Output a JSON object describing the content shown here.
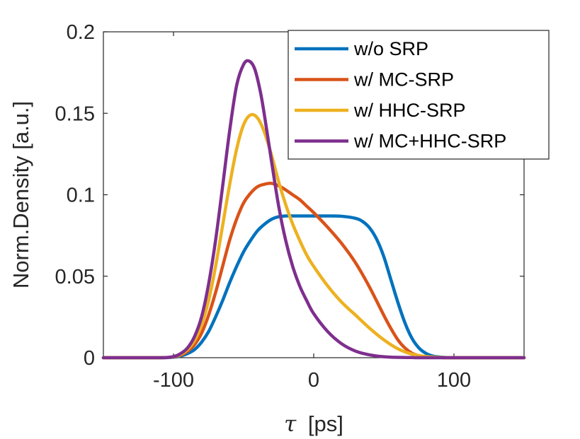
{
  "chart_data": {
    "type": "line",
    "xlabel_symbol": "τ",
    "xlabel_unit": "[ps]",
    "ylabel": "Norm.Density [a.u.]",
    "xlim": [
      -150,
      150
    ],
    "ylim": [
      0,
      0.2
    ],
    "x_ticks": [
      -100,
      0,
      100
    ],
    "x_tick_labels": [
      "-100",
      "0",
      "100"
    ],
    "y_ticks": [
      0,
      0.05,
      0.1,
      0.15,
      0.2
    ],
    "y_tick_labels": [
      "0",
      "0.05",
      "0.1",
      "0.15",
      "0.2"
    ],
    "grid": false,
    "legend_position": "top-right",
    "series": [
      {
        "name": "w/o SRP",
        "color": "#0072BD",
        "x": [
          -150,
          -110,
          -100,
          -95,
          -90,
          -85,
          -80,
          -75,
          -70,
          -65,
          -60,
          -55,
          -50,
          -45,
          -40,
          -35,
          -30,
          -25,
          -20,
          -15,
          -10,
          0,
          10,
          20,
          30,
          35,
          40,
          45,
          50,
          55,
          60,
          65,
          70,
          75,
          80,
          85,
          90,
          95,
          100,
          110,
          150
        ],
        "y": [
          0,
          0,
          0.0003,
          0.001,
          0.0025,
          0.005,
          0.0095,
          0.016,
          0.025,
          0.035,
          0.046,
          0.056,
          0.065,
          0.072,
          0.078,
          0.082,
          0.085,
          0.0865,
          0.087,
          0.087,
          0.087,
          0.087,
          0.087,
          0.0868,
          0.0855,
          0.0835,
          0.0795,
          0.0725,
          0.062,
          0.048,
          0.034,
          0.0215,
          0.012,
          0.006,
          0.0027,
          0.001,
          0.0004,
          0.0001,
          0,
          0,
          0
        ]
      },
      {
        "name": "w/ MC-SRP",
        "color": "#D95319",
        "x": [
          -150,
          -110,
          -100,
          -95,
          -90,
          -85,
          -80,
          -75,
          -70,
          -65,
          -60,
          -55,
          -50,
          -45,
          -40,
          -35,
          -30,
          -25,
          -20,
          -15,
          -10,
          -5,
          0,
          10,
          20,
          30,
          40,
          50,
          55,
          60,
          65,
          70,
          75,
          80,
          85,
          90,
          100,
          150
        ],
        "y": [
          0,
          0,
          0.0005,
          0.0015,
          0.004,
          0.008,
          0.015,
          0.026,
          0.04,
          0.056,
          0.072,
          0.085,
          0.095,
          0.101,
          0.105,
          0.1065,
          0.107,
          0.1055,
          0.103,
          0.1,
          0.097,
          0.093,
          0.089,
          0.08,
          0.07,
          0.058,
          0.043,
          0.026,
          0.018,
          0.011,
          0.006,
          0.0028,
          0.0012,
          0.0005,
          0.0002,
          0.0001,
          0,
          0
        ]
      },
      {
        "name": "w/ HHC-SRP",
        "color": "#EDB120",
        "x": [
          -150,
          -110,
          -100,
          -95,
          -90,
          -85,
          -80,
          -75,
          -70,
          -65,
          -60,
          -55,
          -50,
          -45,
          -40,
          -35,
          -30,
          -25,
          -20,
          -15,
          -10,
          -5,
          0,
          10,
          20,
          30,
          40,
          50,
          60,
          70,
          80,
          90,
          100,
          150
        ],
        "y": [
          0,
          0,
          0.0006,
          0.002,
          0.005,
          0.0105,
          0.02,
          0.035,
          0.056,
          0.081,
          0.106,
          0.128,
          0.143,
          0.149,
          0.147,
          0.138,
          0.124,
          0.108,
          0.094,
          0.082,
          0.072,
          0.063,
          0.056,
          0.044,
          0.034,
          0.026,
          0.018,
          0.011,
          0.0055,
          0.0022,
          0.0007,
          0.0002,
          0,
          0
        ]
      },
      {
        "name": "w/ MC+HHC-SRP",
        "color": "#7E2F8E",
        "x": [
          -150,
          -110,
          -100,
          -95,
          -90,
          -85,
          -80,
          -75,
          -70,
          -65,
          -60,
          -55,
          -50,
          -46,
          -42,
          -38,
          -35,
          -30,
          -25,
          -20,
          -15,
          -10,
          -5,
          0,
          10,
          20,
          30,
          40,
          50,
          60,
          70,
          80,
          150
        ],
        "y": [
          0,
          0,
          0.0007,
          0.0025,
          0.006,
          0.013,
          0.025,
          0.045,
          0.072,
          0.105,
          0.139,
          0.167,
          0.18,
          0.182,
          0.177,
          0.163,
          0.148,
          0.12,
          0.093,
          0.072,
          0.056,
          0.044,
          0.035,
          0.027,
          0.016,
          0.0085,
          0.004,
          0.0017,
          0.0006,
          0.0002,
          0.0001,
          0,
          0
        ]
      }
    ]
  }
}
